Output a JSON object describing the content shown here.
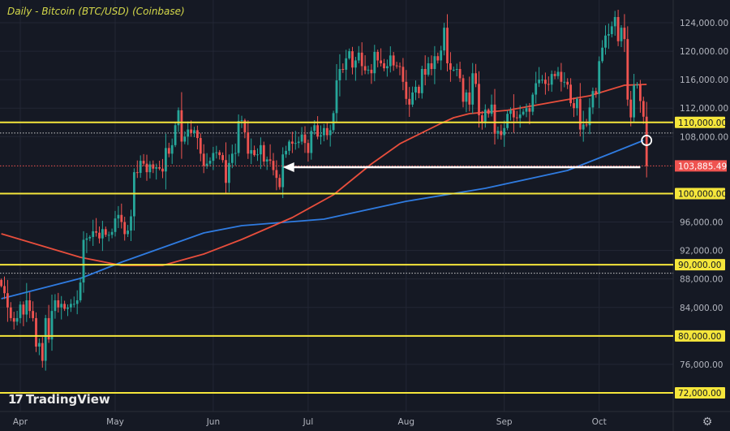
{
  "title": "Daily - Bitcoin (BTC/USD) (Coinbase)",
  "logo_text": "TradingView",
  "settings_icon": "gear-icon",
  "colors": {
    "background": "#151924",
    "up": "#26a69a",
    "down": "#ef5350",
    "level_line": "#f5e63b",
    "ma_blue": "#2f7be0",
    "ma_red": "#e84e3c",
    "last_price": "#ef5350",
    "arrow": "#ffffff"
  },
  "chart_data": {
    "type": "candlestick",
    "title": "Daily - Bitcoin (BTC/USD) (Coinbase)",
    "start_date": "2025-03-26",
    "ylim": [
      70500,
      126500
    ],
    "y_ticks": [
      "124,000.00",
      "120,000.00",
      "116,000.00",
      "112,000.00",
      "108,000.00",
      "96,000.00",
      "92,000.00",
      "88,000.00",
      "84,000.00",
      "76,000.00"
    ],
    "y_tick_values": [
      124000,
      120000,
      116000,
      112000,
      108000,
      96000,
      92000,
      88000,
      84000,
      76000
    ],
    "x_ticks": [
      {
        "label": "Apr",
        "date": "2025-04-01"
      },
      {
        "label": "May",
        "date": "2025-05-01"
      },
      {
        "label": "Jun",
        "date": "2025-06-01"
      },
      {
        "label": "Jul",
        "date": "2025-07-01"
      },
      {
        "label": "Aug",
        "date": "2025-08-01"
      },
      {
        "label": "Sep",
        "date": "2025-09-01"
      },
      {
        "label": "Oct",
        "date": "2025-10-01"
      }
    ],
    "grid": true,
    "closes": [
      87000,
      86000,
      84000,
      82500,
      82000,
      82500,
      84400,
      83000,
      85000,
      83500,
      82500,
      78500,
      79000,
      76500,
      82500,
      79500,
      83500,
      85000,
      84000,
      84500,
      83800,
      84000,
      84500,
      84500,
      85000,
      87500,
      93500,
      93700,
      93900,
      94700,
      94500,
      93700,
      95000,
      94200,
      94200,
      94600,
      96500,
      97000,
      96000,
      94300,
      94800,
      96800,
      103000,
      102900,
      104600,
      104200,
      103000,
      104100,
      103500,
      103700,
      103500,
      103100,
      106400,
      105600,
      106800,
      109600,
      111700,
      107300,
      108000,
      109000,
      108500,
      108900,
      107800,
      105600,
      103900,
      104200,
      104600,
      105700,
      105800,
      105400,
      104700,
      101500,
      104300,
      105600,
      105700,
      110200,
      110300,
      108600,
      105600,
      106100,
      105400,
      105500,
      106800,
      104500,
      104800,
      104600,
      103300,
      102200,
      100900,
      105500,
      106000,
      107300,
      107000,
      107100,
      107300,
      108300,
      107100,
      105700,
      108800,
      109600,
      108000,
      108200,
      109200,
      108200,
      108900,
      111300,
      115900,
      117500,
      117400,
      119000,
      120000,
      117700,
      118700,
      119800,
      117900,
      117300,
      117400,
      116900,
      119900,
      118700,
      118300,
      117600,
      117900,
      119400,
      118000,
      117900,
      117800,
      115700,
      113300,
      112500,
      114200,
      115000,
      114100,
      117500,
      116700,
      118300,
      117500,
      119300,
      118700,
      120100,
      123300,
      118300,
      117400,
      117400,
      117500,
      116200,
      112900,
      114200,
      112500,
      116900,
      115400,
      111000,
      110100,
      111800,
      111200,
      112500,
      108400,
      108800,
      108200,
      109200,
      111200,
      111700,
      110700,
      110600,
      111100,
      111500,
      112000,
      111500,
      113900,
      115500,
      116000,
      116000,
      115400,
      115300,
      116800,
      116500,
      117100,
      115700,
      115700,
      115300,
      112700,
      112000,
      113300,
      109000,
      109700,
      109600,
      112100,
      114400,
      114000,
      118600,
      120500,
      122200,
      122400,
      123500,
      124800,
      121400,
      123300,
      121700,
      113200,
      110700,
      115200,
      115300,
      113000,
      110800,
      103885
    ],
    "last_price": 103885.49,
    "last_price_label": "103,885.49",
    "moving_averages": [
      {
        "color": "#2f7be0",
        "points": [
          [
            "2025-03-26",
            85230
          ],
          [
            "2025-04-20",
            88080
          ],
          [
            "2025-05-03",
            90360
          ],
          [
            "2025-05-29",
            94460
          ],
          [
            "2025-06-10",
            95490
          ],
          [
            "2025-07-06",
            96400
          ],
          [
            "2025-08-01",
            98910
          ],
          [
            "2025-08-26",
            100740
          ],
          [
            "2025-09-21",
            103250
          ],
          [
            "2025-10-06",
            105870
          ],
          [
            "2025-10-15",
            107470
          ]
        ]
      },
      {
        "color": "#e84e3c",
        "points": [
          [
            "2025-03-26",
            94350
          ],
          [
            "2025-04-20",
            91040
          ],
          [
            "2025-05-03",
            89900
          ],
          [
            "2025-05-16",
            89900
          ],
          [
            "2025-05-29",
            91500
          ],
          [
            "2025-06-10",
            93550
          ],
          [
            "2025-06-26",
            96630
          ],
          [
            "2025-07-09",
            99820
          ],
          [
            "2025-07-21",
            104160
          ],
          [
            "2025-07-30",
            107000
          ],
          [
            "2025-08-12",
            109860
          ],
          [
            "2025-08-16",
            110660
          ],
          [
            "2025-08-21",
            111230
          ],
          [
            "2025-09-02",
            111690
          ],
          [
            "2025-09-19",
            113050
          ],
          [
            "2025-09-28",
            113740
          ],
          [
            "2025-10-09",
            115220
          ],
          [
            "2025-10-16",
            115330
          ]
        ]
      }
    ],
    "horizontal_levels": [
      {
        "value": 110000,
        "label": "110,000.00"
      },
      {
        "value": 100000,
        "label": "100,000.00"
      },
      {
        "value": 90000,
        "label": "90,000.00"
      },
      {
        "value": 80000,
        "label": "80,000.00"
      },
      {
        "value": 72000,
        "label": "72,000.00"
      }
    ],
    "dotted_levels": [
      108500,
      88800
    ],
    "arrow": {
      "from_date": "2025-10-14",
      "to_date": "2025-06-23",
      "price": 103700
    },
    "circle_marker": {
      "date": "2025-10-16",
      "price": 107470
    }
  }
}
